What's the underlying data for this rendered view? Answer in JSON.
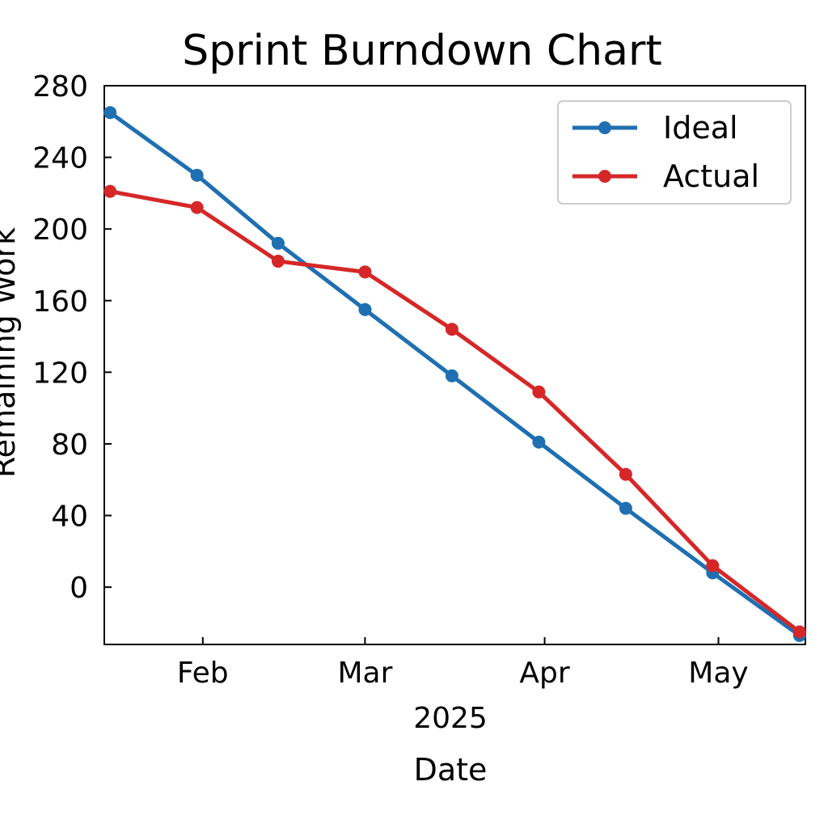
{
  "chart_data": {
    "type": "line",
    "title": "Sprint Burndown Chart",
    "xlabel": "Date",
    "xlabel_offset": "2025",
    "ylabel": "Remaining Work",
    "x": [
      "2025-01-16",
      "2025-01-31",
      "2025-02-14",
      "2025-03-01",
      "2025-03-16",
      "2025-03-31",
      "2025-04-15",
      "2025-04-30",
      "2025-05-15"
    ],
    "xlim": [
      "2025-01-15",
      "2025-05-16"
    ],
    "x_ticks": [
      {
        "date": "2025-02-01",
        "label": "Feb"
      },
      {
        "date": "2025-03-01",
        "label": "Mar"
      },
      {
        "date": "2025-04-01",
        "label": "Apr"
      },
      {
        "date": "2025-05-01",
        "label": "May"
      }
    ],
    "ylim": [
      -32,
      280
    ],
    "y_ticks": [
      0,
      40,
      80,
      120,
      160,
      200,
      240,
      280
    ],
    "series": [
      {
        "name": "Ideal",
        "color": "#1f6fb2",
        "values": [
          265,
          230,
          192,
          155,
          118,
          81,
          44,
          8,
          -27
        ]
      },
      {
        "name": "Actual",
        "color": "#d62728",
        "values": [
          221,
          212,
          182,
          176,
          144,
          109,
          63,
          12,
          -25
        ]
      }
    ],
    "grid": false,
    "legend_position": "top-right"
  }
}
